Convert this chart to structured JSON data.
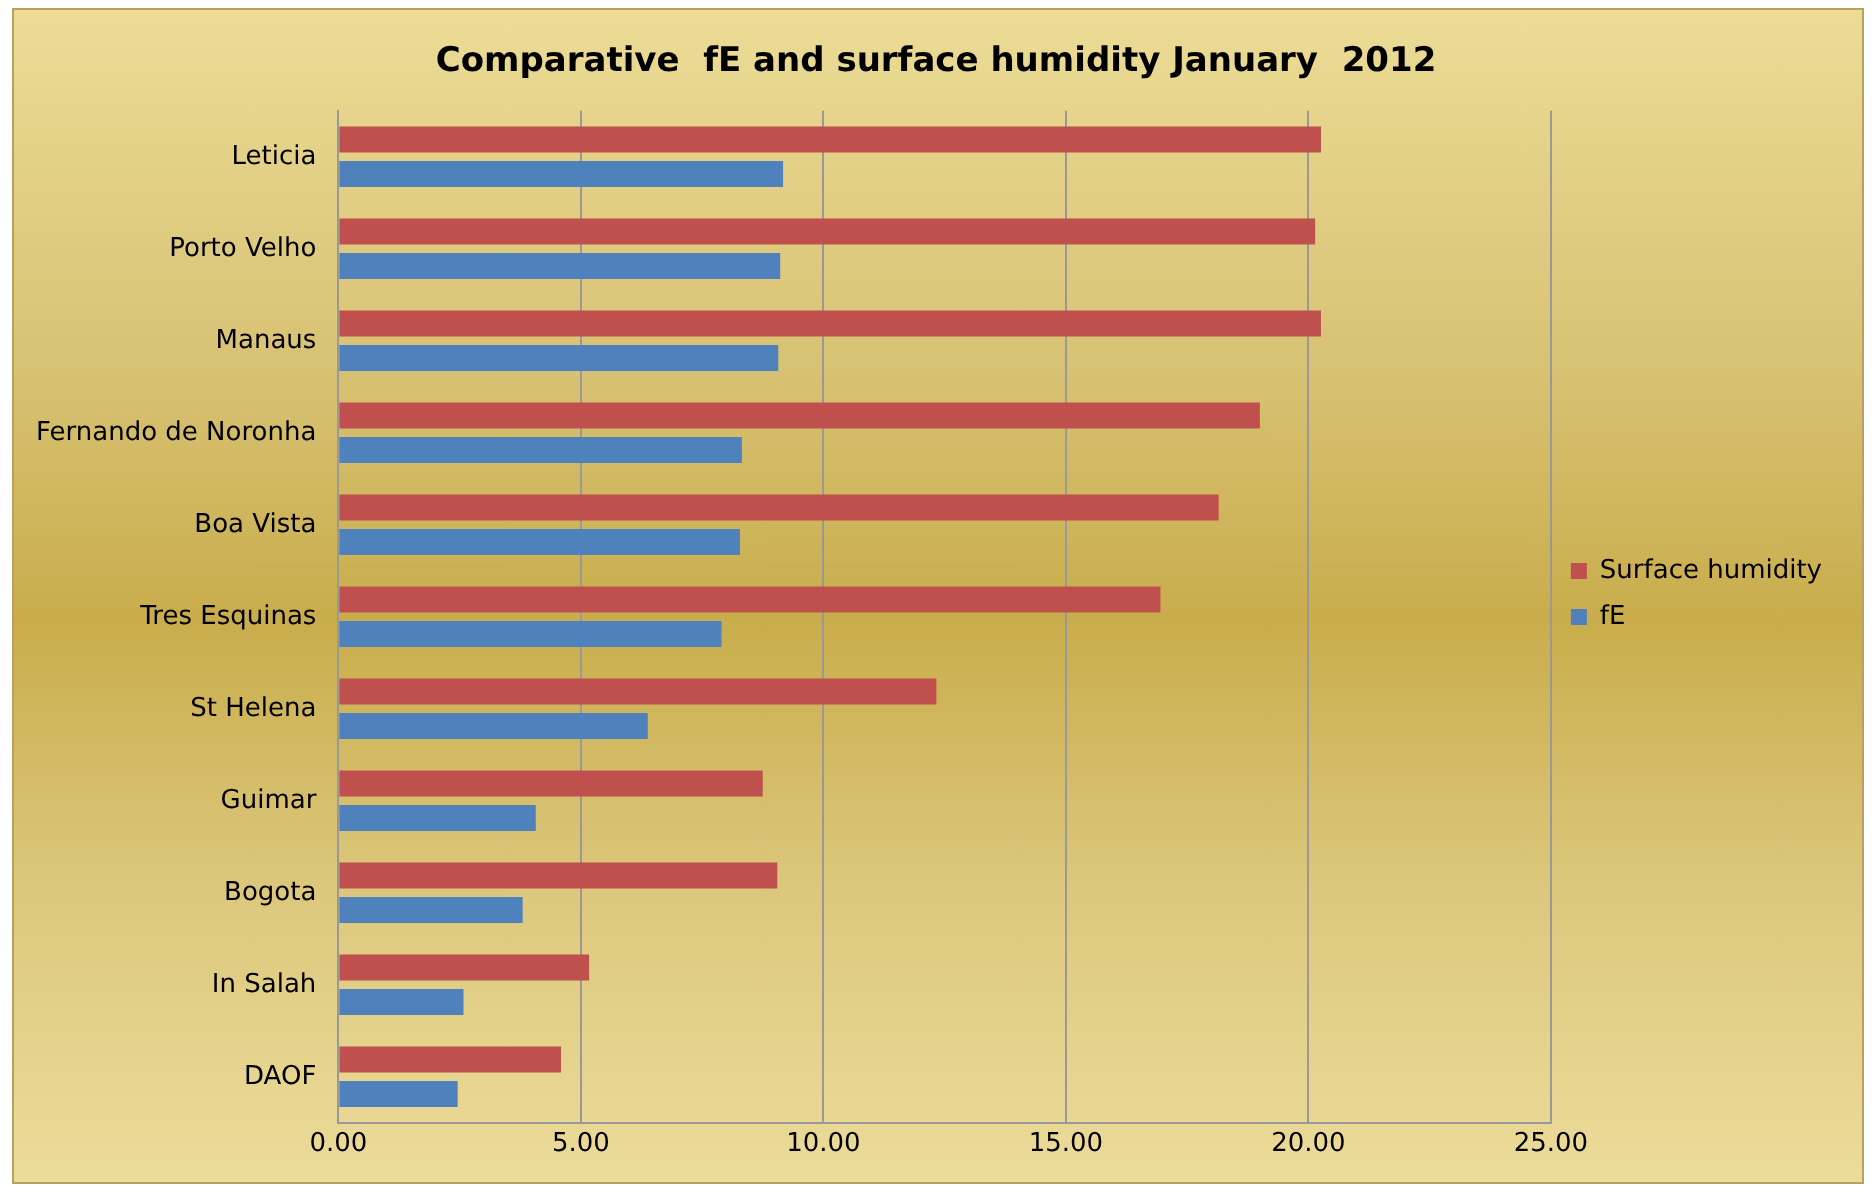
{
  "chart_data": {
    "type": "bar",
    "orientation": "horizontal",
    "title": "Comparative  fE and surface humidity January  2012",
    "categories": [
      "Leticia",
      "Porto Velho",
      "Manaus",
      "Fernando de Noronha",
      "Boa Vista",
      "Tres Esquinas",
      "St Helena",
      "Guimar",
      "Bogota",
      "In Salah",
      "DAOF"
    ],
    "series": [
      {
        "name": "Surface humidity",
        "color": "#c0504d",
        "values": [
          20.26,
          20.14,
          20.26,
          19.0,
          18.15,
          16.95,
          12.33,
          8.75,
          9.05,
          5.17,
          4.59
        ]
      },
      {
        "name": "fE",
        "color": "#4f81bd",
        "values": [
          9.17,
          9.11,
          9.07,
          8.32,
          8.28,
          7.9,
          6.38,
          4.07,
          3.8,
          2.58,
          2.46
        ]
      }
    ],
    "xlim": [
      0,
      25
    ],
    "xticks": [
      {
        "value": 0,
        "label": "0.00"
      },
      {
        "value": 5,
        "label": "5.00"
      },
      {
        "value": 10,
        "label": "10.00"
      },
      {
        "value": 15,
        "label": "15.00"
      },
      {
        "value": 20,
        "label": "20.00"
      },
      {
        "value": 25,
        "label": "25.00"
      }
    ],
    "grid": "x",
    "legend": "right"
  }
}
